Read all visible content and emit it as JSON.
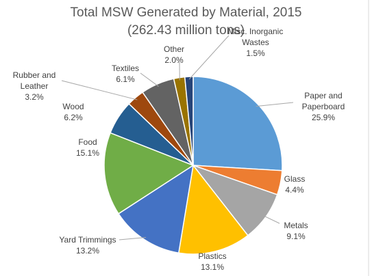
{
  "chart_data": {
    "type": "pie",
    "title": "Total MSW Generated by Material, 2015",
    "subtitle": "(262.43 million tons)",
    "categories": [
      "Paper and Paperboard",
      "Glass",
      "Metals",
      "Plastics",
      "Yard Trimmings",
      "Food",
      "Wood",
      "Rubber and Leather",
      "Textiles",
      "Other",
      "Misc. Inorganic Wastes"
    ],
    "values": [
      25.9,
      4.4,
      9.1,
      13.1,
      13.2,
      15.1,
      6.2,
      3.2,
      6.1,
      2.0,
      1.5
    ],
    "value_labels": [
      "25.9%",
      "4.4%",
      "9.1%",
      "13.1%",
      "13.2%",
      "15.1%",
      "6.2%",
      "3.2%",
      "6.1%",
      "2.0%",
      "1.5%"
    ],
    "colors": [
      "#5b9bd5",
      "#ed7d31",
      "#a5a5a5",
      "#ffc000",
      "#4472c4",
      "#70ad47",
      "#255e91",
      "#9e480e",
      "#636363",
      "#997300",
      "#264478"
    ]
  }
}
